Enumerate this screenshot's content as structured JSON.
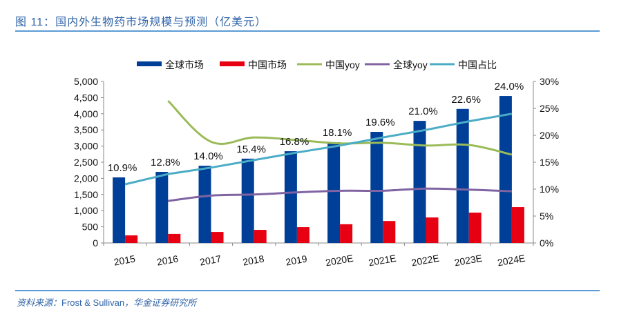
{
  "figure": {
    "label": "图 11：",
    "title": "国内外生物药市场规模与预测（亿美元）"
  },
  "source": {
    "prefix": "资料来源：",
    "provider": "Frost & Sullivan",
    "separator": "，",
    "institute": "华金证券研究所"
  },
  "chart_data": {
    "type": "bar",
    "title": "国内外生物药市场规模与预测（亿美元）",
    "categories": [
      "2015",
      "2016",
      "2017",
      "2018",
      "2019",
      "2020E",
      "2021E",
      "2022E",
      "2023E",
      "2024E"
    ],
    "y_left": {
      "ticks": [
        "0",
        "500",
        "1,000",
        "1,500",
        "2,000",
        "2,500",
        "3,000",
        "3,500",
        "4,000",
        "4,500",
        "5,000"
      ],
      "range": [
        0,
        5000
      ]
    },
    "y_right": {
      "ticks": [
        "0%",
        "5%",
        "10%",
        "15%",
        "20%",
        "25%",
        "30%"
      ],
      "range": [
        0,
        30
      ]
    },
    "legend_position": "top",
    "grid": false,
    "series": [
      {
        "name": "全球市场",
        "type": "bar",
        "axis": "left",
        "color": "#003f98",
        "values": [
          2030,
          2200,
          2390,
          2610,
          2840,
          3120,
          3440,
          3780,
          4150,
          4550
        ]
      },
      {
        "name": "中国市场",
        "type": "bar",
        "axis": "left",
        "color": "#e60012",
        "values": [
          235,
          280,
          340,
          405,
          490,
          580,
          680,
          790,
          940,
          1110
        ]
      },
      {
        "name": "中国yoy",
        "type": "line",
        "axis": "right",
        "color": "#9bbb59",
        "values": [
          null,
          26.4,
          18.8,
          19.6,
          19.1,
          18.5,
          18.6,
          18.1,
          18.2,
          16.4
        ]
      },
      {
        "name": "全球yoy",
        "type": "line",
        "axis": "right",
        "color": "#8064a2",
        "values": [
          null,
          7.8,
          8.8,
          9.0,
          9.4,
          9.7,
          9.7,
          10.1,
          9.9,
          9.6
        ]
      },
      {
        "name": "中国占比",
        "type": "line",
        "axis": "right",
        "color": "#4bacc6",
        "values": [
          10.9,
          12.8,
          14.0,
          15.4,
          16.8,
          18.1,
          19.6,
          21.0,
          22.6,
          24.0
        ],
        "labels": [
          "10.9%",
          "12.8%",
          "14.0%",
          "15.4%",
          "16.8%",
          "18.1%",
          "19.6%",
          "21.0%",
          "22.6%",
          "24.0%"
        ]
      }
    ]
  }
}
